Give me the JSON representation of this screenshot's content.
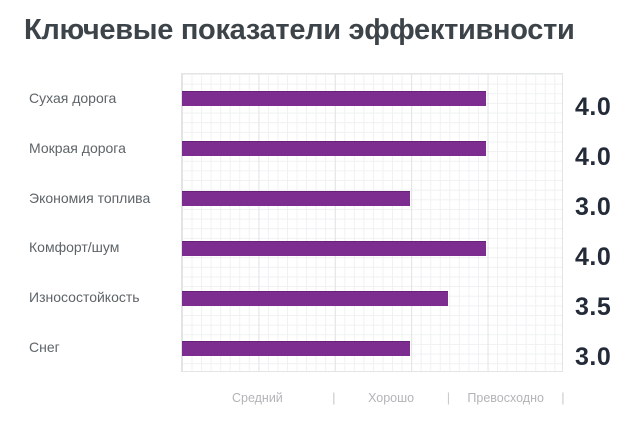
{
  "title": "Ключевые показатели эффективности",
  "chart_data": {
    "type": "bar",
    "orientation": "horizontal",
    "title": "Ключевые показатели эффективности",
    "categories": [
      "Сухая дорога",
      "Мокрая дорога",
      "Экономия топлива",
      "Комфорт/шум",
      "Износостойкость",
      "Снег"
    ],
    "values": [
      4.0,
      4.0,
      3.0,
      4.0,
      3.5,
      3.0
    ],
    "value_labels": [
      "4.0",
      "4.0",
      "3.0",
      "4.0",
      "3.5",
      "3.0"
    ],
    "xlim": [
      0,
      5
    ],
    "grid": true,
    "legend": "none",
    "bar_color": "#7d2d8f",
    "scale_zones": [
      {
        "label": "Средний",
        "from": 0,
        "to": 2
      },
      {
        "label": "Хорошо",
        "from": 2,
        "to": 3.5
      },
      {
        "label": "Превосходно",
        "from": 3.5,
        "to": 5
      }
    ],
    "scale_separator_glyph": "|"
  }
}
